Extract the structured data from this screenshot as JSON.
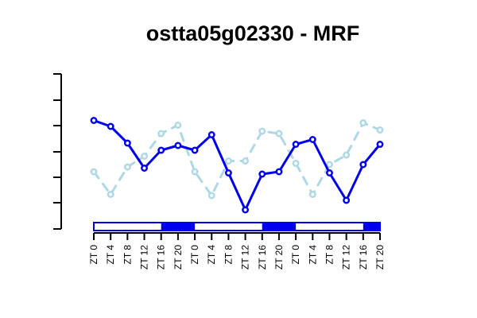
{
  "chart_data": {
    "type": "line",
    "title": "ostta05g02330 - MRF",
    "categories": [
      "ZT 0",
      "ZT 4",
      "ZT 8",
      "ZT 12",
      "ZT 16",
      "ZT 20",
      "ZT 0",
      "ZT 4",
      "ZT 8",
      "ZT 12",
      "ZT 16",
      "ZT 20",
      "ZT 0",
      "ZT 4",
      "ZT 8",
      "ZT 12",
      "ZT 16",
      "ZT 20"
    ],
    "ylim": [
      0,
      6.5
    ],
    "series": [
      {
        "key": "dark",
        "color": "#0000ee",
        "dashed": false,
        "values": [
          4.55,
          4.3,
          3.6,
          2.55,
          3.3,
          3.5,
          3.3,
          3.95,
          2.35,
          0.8,
          2.3,
          2.4,
          3.55,
          3.75,
          2.35,
          1.2,
          2.7,
          3.55
        ]
      },
      {
        "key": "light",
        "color": "#add8e6",
        "dashed": true,
        "values": [
          2.4,
          1.45,
          2.6,
          3.05,
          4.0,
          4.35,
          2.4,
          1.4,
          2.85,
          2.85,
          4.1,
          4.0,
          2.75,
          1.45,
          2.7,
          3.1,
          4.45,
          4.15
        ]
      }
    ],
    "light_dark_bar": [
      "light",
      "light",
      "light",
      "light",
      "dark",
      "dark",
      "light",
      "light",
      "light",
      "light",
      "dark",
      "dark",
      "light",
      "light",
      "light",
      "light",
      "dark",
      "dark"
    ]
  }
}
